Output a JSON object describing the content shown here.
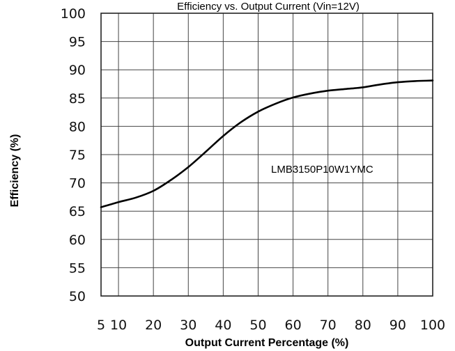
{
  "chart_data": {
    "type": "line",
    "title": "Efficiency vs. Output Current (Vin=12V)",
    "xlabel": "Output Current Percentage (%)",
    "ylabel": "Efficiency (%)",
    "xlim": [
      5,
      100
    ],
    "ylim": [
      50,
      100
    ],
    "xticks": [
      5,
      10,
      20,
      30,
      40,
      50,
      60,
      70,
      80,
      90,
      100
    ],
    "yticks": [
      50,
      55,
      60,
      65,
      70,
      75,
      80,
      85,
      90,
      95,
      100
    ],
    "grid": true,
    "annotation": "LMB3150P10W1YMC",
    "series": [
      {
        "name": "LMB3150P10W1YMC",
        "color": "#000000",
        "x": [
          5,
          10,
          15,
          20,
          25,
          30,
          35,
          40,
          45,
          50,
          55,
          60,
          65,
          70,
          75,
          80,
          85,
          90,
          95,
          100
        ],
        "y": [
          65.7,
          66.6,
          67.4,
          68.6,
          70.5,
          72.8,
          75.5,
          78.3,
          80.7,
          82.6,
          84.0,
          85.1,
          85.8,
          86.3,
          86.6,
          86.9,
          87.4,
          87.8,
          88.0,
          88.1
        ]
      }
    ]
  }
}
